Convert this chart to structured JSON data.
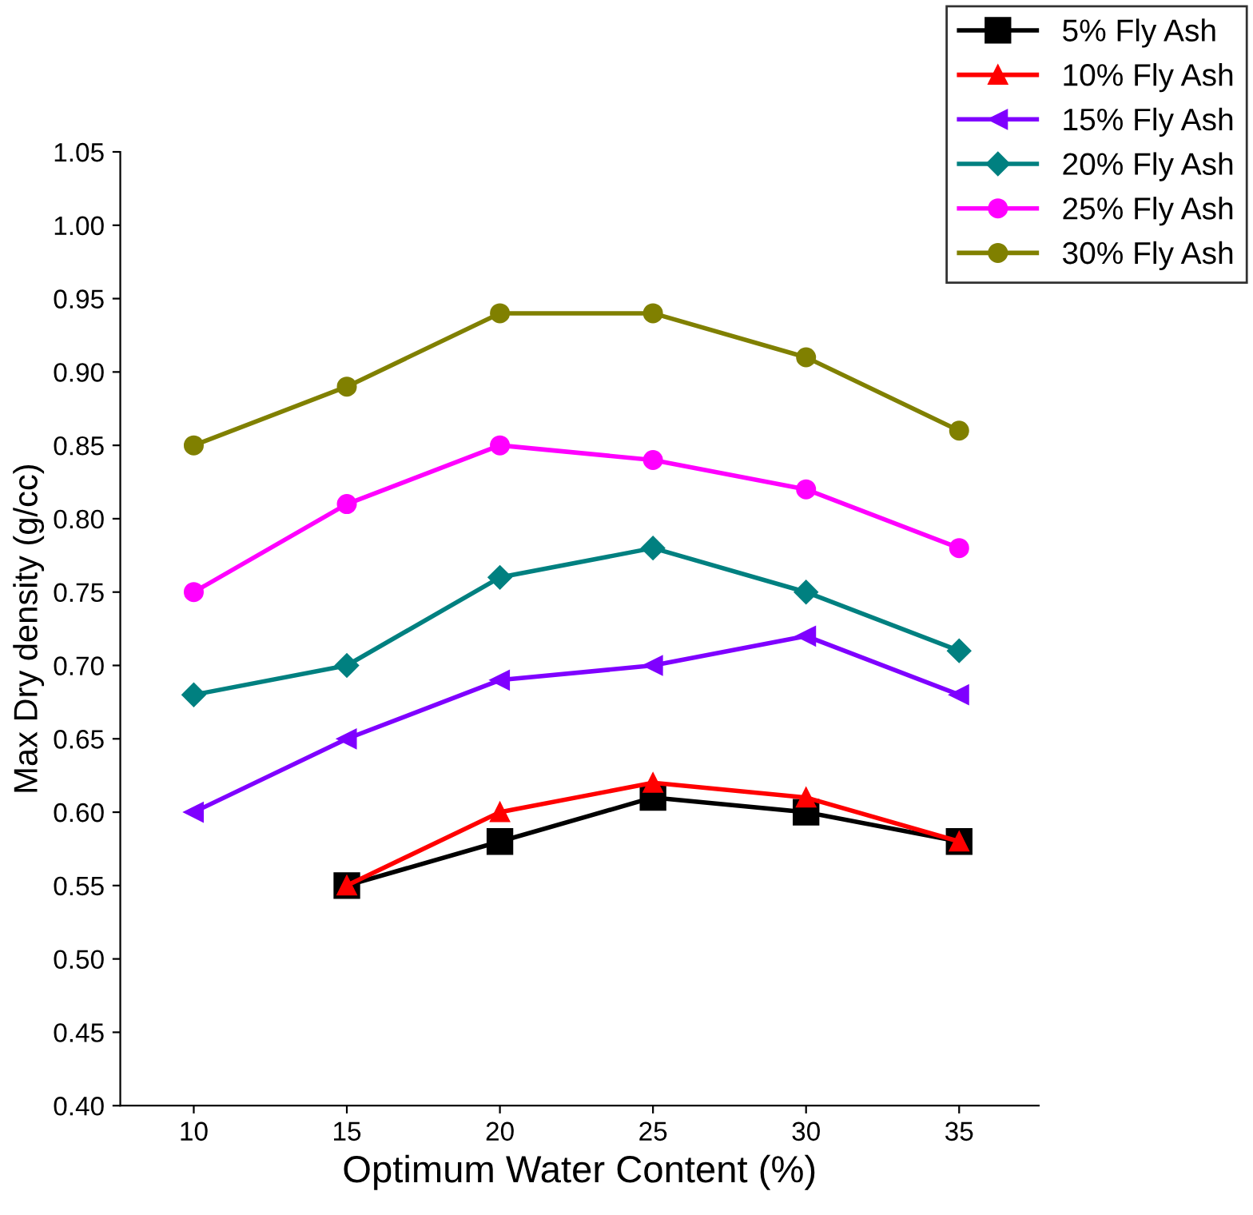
{
  "chart_data": {
    "type": "line",
    "xlabel": "Optimum Water Content (%)",
    "ylabel": "Max Dry density (g/cc)",
    "xlim": [
      7.6,
      37.6
    ],
    "xticks": [
      10,
      15,
      20,
      25,
      30,
      35
    ],
    "ylim": [
      0.4,
      1.05
    ],
    "yticks": [
      {
        "value": 0.4,
        "label": "0.40"
      },
      {
        "value": 0.45,
        "label": "0.45"
      },
      {
        "value": 0.5,
        "label": "0.50"
      },
      {
        "value": 0.55,
        "label": "0.55"
      },
      {
        "value": 0.6,
        "label": "0.60"
      },
      {
        "value": 0.65,
        "label": "0.65"
      },
      {
        "value": 0.7,
        "label": "0.70"
      },
      {
        "value": 0.75,
        "label": "0.75"
      },
      {
        "value": 0.8,
        "label": "0.80"
      },
      {
        "value": 0.85,
        "label": "0.85"
      },
      {
        "value": 0.9,
        "label": "0.90"
      },
      {
        "value": 0.95,
        "label": "0.95"
      },
      {
        "value": 1.0,
        "label": "1.00"
      },
      {
        "value": 1.05,
        "label": "1.05"
      }
    ],
    "grid": false,
    "legend": "top right",
    "line_style": "solid",
    "series": [
      {
        "name": "5% Fly Ash",
        "color": "#000000",
        "marker": "square",
        "x": [
          15,
          20,
          25,
          30,
          35
        ],
        "values": [
          0.55,
          0.58,
          0.61,
          0.6,
          0.58
        ]
      },
      {
        "name": "10% Fly Ash",
        "color": "#ff0000",
        "marker": "triangle",
        "x": [
          15,
          20,
          25,
          30,
          35
        ],
        "values": [
          0.55,
          0.6,
          0.62,
          0.61,
          0.58
        ]
      },
      {
        "name": "15% Fly Ash",
        "color": "#7f00ff",
        "marker": "triangle-left",
        "x": [
          10,
          15,
          20,
          25,
          30,
          35
        ],
        "values": [
          0.6,
          0.65,
          0.69,
          0.7,
          0.72,
          0.68
        ]
      },
      {
        "name": "20% Fly Ash",
        "color": "#008080",
        "marker": "diamond",
        "x": [
          10,
          15,
          20,
          25,
          30,
          35
        ],
        "values": [
          0.68,
          0.7,
          0.76,
          0.78,
          0.75,
          0.71
        ]
      },
      {
        "name": "25% Fly Ash",
        "color": "#ff00ff",
        "marker": "circle",
        "x": [
          10,
          15,
          20,
          25,
          30,
          35
        ],
        "values": [
          0.75,
          0.81,
          0.85,
          0.84,
          0.82,
          0.78
        ]
      },
      {
        "name": "30% Fly Ash",
        "color": "#808000",
        "marker": "circle",
        "x": [
          10,
          15,
          20,
          25,
          30,
          35
        ],
        "values": [
          0.85,
          0.89,
          0.94,
          0.94,
          0.91,
          0.86
        ]
      }
    ]
  }
}
